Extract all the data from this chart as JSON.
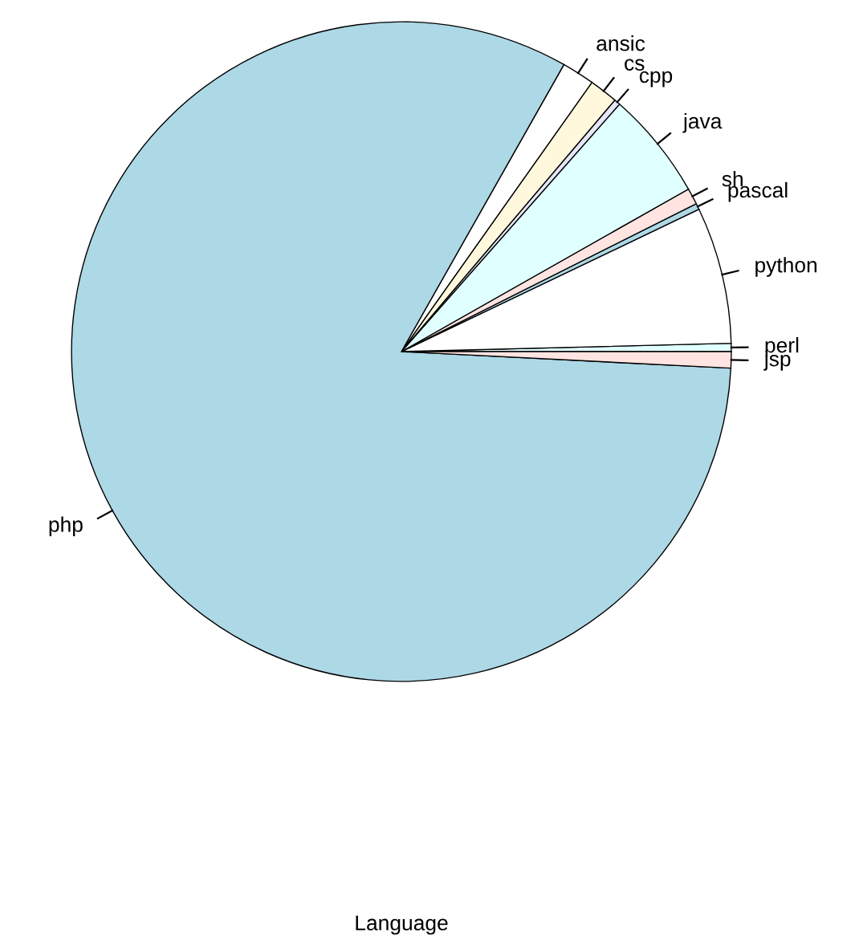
{
  "chart_data": {
    "type": "pie",
    "xlabel": "Language",
    "categories": [
      "perl",
      "python",
      "pascal",
      "sh",
      "java",
      "cpp",
      "cs",
      "ansic",
      "php",
      "jsp"
    ],
    "values": [
      0.4,
      6.7,
      0.3,
      0.8,
      5.3,
      0.3,
      1.4,
      1.6,
      82.4,
      0.8
    ],
    "colors": [
      "#e0ffff",
      "#ffffff",
      "#add8e6",
      "#ffe4e1",
      "#e0ffff",
      "#e6e6fa",
      "#fff8dc",
      "#ffffff",
      "#add8e6",
      "#ffe4e1"
    ],
    "legend": false
  }
}
